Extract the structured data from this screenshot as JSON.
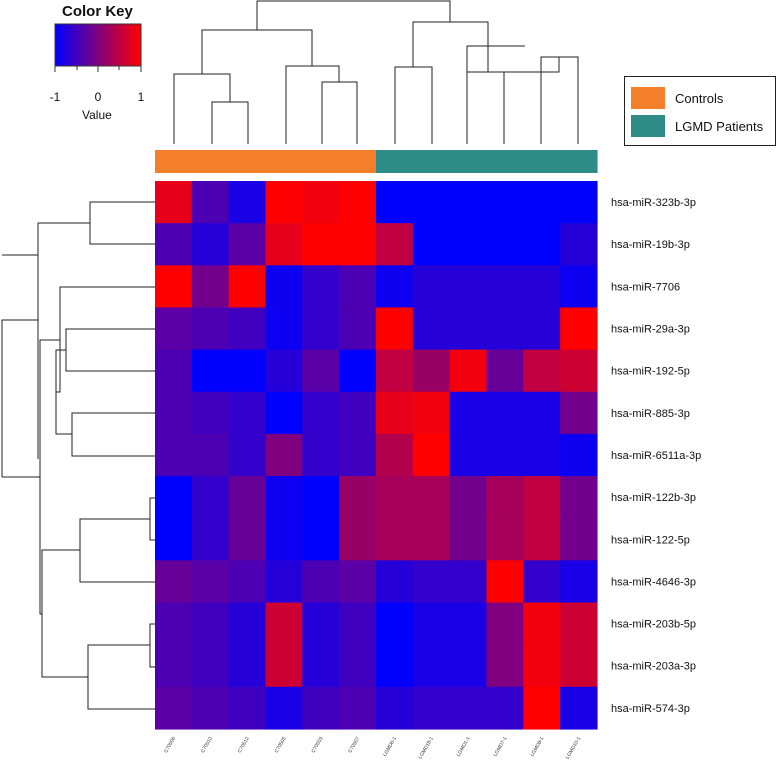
{
  "color_key": {
    "title": "Color Key",
    "tick_labels": [
      "-1",
      "0",
      "1"
    ],
    "value_label": "Value",
    "low_color": "#0000ff",
    "mid_color": "#800080",
    "high_color": "#ff0000"
  },
  "legend": [
    {
      "label": "Controls",
      "color": "#f47f2a"
    },
    {
      "label": "LGMD Patients",
      "color": "#2e8b87"
    }
  ],
  "chart_data": {
    "type": "heatmap",
    "title": "",
    "color_scale": {
      "min": -1,
      "max": 1,
      "colors": [
        "#0000ff",
        "#800080",
        "#ff0000"
      ]
    },
    "columns": [
      "C70506",
      "C70510",
      "C70512",
      "C70505",
      "C70503",
      "C70507",
      "LGMD6-1",
      "LGMD18-1",
      "LGMD1-1",
      "LGMD7-1",
      "LGMD8-1",
      "LGMD10-1"
    ],
    "column_groups": [
      "Controls",
      "Controls",
      "Controls",
      "Controls",
      "Controls",
      "Controls",
      "LGMD Patients",
      "LGMD Patients",
      "LGMD Patients",
      "LGMD Patients",
      "LGMD Patients",
      "LGMD Patients"
    ],
    "rows": [
      "hsa-miR-323b-3p",
      "hsa-miR-19b-3p",
      "hsa-miR-7706",
      "hsa-miR-29a-3p",
      "hsa-miR-192-5p",
      "hsa-miR-885-3p",
      "hsa-miR-6511a-3p",
      "hsa-miR-122b-3p",
      "hsa-miR-122-5p",
      "hsa-miR-4646-3p",
      "hsa-miR-203b-5p",
      "hsa-miR-203a-3p",
      "hsa-miR-574-3p"
    ],
    "values": [
      [
        0.8,
        -0.4,
        -0.8,
        1.0,
        0.9,
        1.0,
        -1.0,
        -1.0,
        -1.0,
        -1.0,
        -1.0,
        -1.0
      ],
      [
        -0.4,
        -0.7,
        -0.3,
        0.8,
        1.0,
        1.0,
        0.5,
        -1.0,
        -1.0,
        -1.0,
        -1.0,
        -0.7
      ],
      [
        1.0,
        -0.1,
        1.0,
        -0.9,
        -0.6,
        -0.4,
        -0.9,
        -0.7,
        -0.7,
        -0.7,
        -0.7,
        -0.9
      ],
      [
        -0.3,
        -0.4,
        -0.5,
        -0.9,
        -0.6,
        -0.4,
        1.0,
        -0.7,
        -0.7,
        -0.7,
        -0.7,
        1.0
      ],
      [
        -0.4,
        -1.0,
        -1.0,
        -0.7,
        -0.3,
        -1.0,
        0.5,
        0.2,
        0.9,
        -0.2,
        0.5,
        0.6
      ],
      [
        -0.4,
        -0.5,
        -0.6,
        -1.0,
        -0.6,
        -0.5,
        0.8,
        0.9,
        -0.8,
        -0.8,
        -0.8,
        -0.1
      ],
      [
        -0.4,
        -0.4,
        -0.6,
        0.0,
        -0.6,
        -0.5,
        0.4,
        1.0,
        -0.8,
        -0.8,
        -0.8,
        -0.9
      ],
      [
        -1.0,
        -0.6,
        -0.2,
        -0.9,
        -1.0,
        0.2,
        0.3,
        0.3,
        -0.1,
        0.3,
        0.5,
        -0.1
      ],
      [
        -1.0,
        -0.6,
        -0.2,
        -0.9,
        -1.0,
        0.2,
        0.3,
        0.3,
        -0.1,
        0.3,
        0.5,
        -0.1
      ],
      [
        -0.2,
        -0.3,
        -0.4,
        -0.7,
        -0.4,
        -0.3,
        -0.7,
        -0.6,
        -0.6,
        1.0,
        -0.6,
        -0.8
      ],
      [
        -0.4,
        -0.5,
        -0.7,
        0.6,
        -0.7,
        -0.5,
        -1.0,
        -0.8,
        -0.8,
        0.0,
        0.9,
        0.6
      ],
      [
        -0.4,
        -0.5,
        -0.7,
        0.6,
        -0.7,
        -0.5,
        -1.0,
        -0.8,
        -0.8,
        0.0,
        0.9,
        0.6
      ],
      [
        -0.3,
        -0.4,
        -0.5,
        -0.8,
        -0.5,
        -0.4,
        -0.7,
        -0.6,
        -0.6,
        -0.6,
        1.0,
        -0.8
      ]
    ]
  }
}
